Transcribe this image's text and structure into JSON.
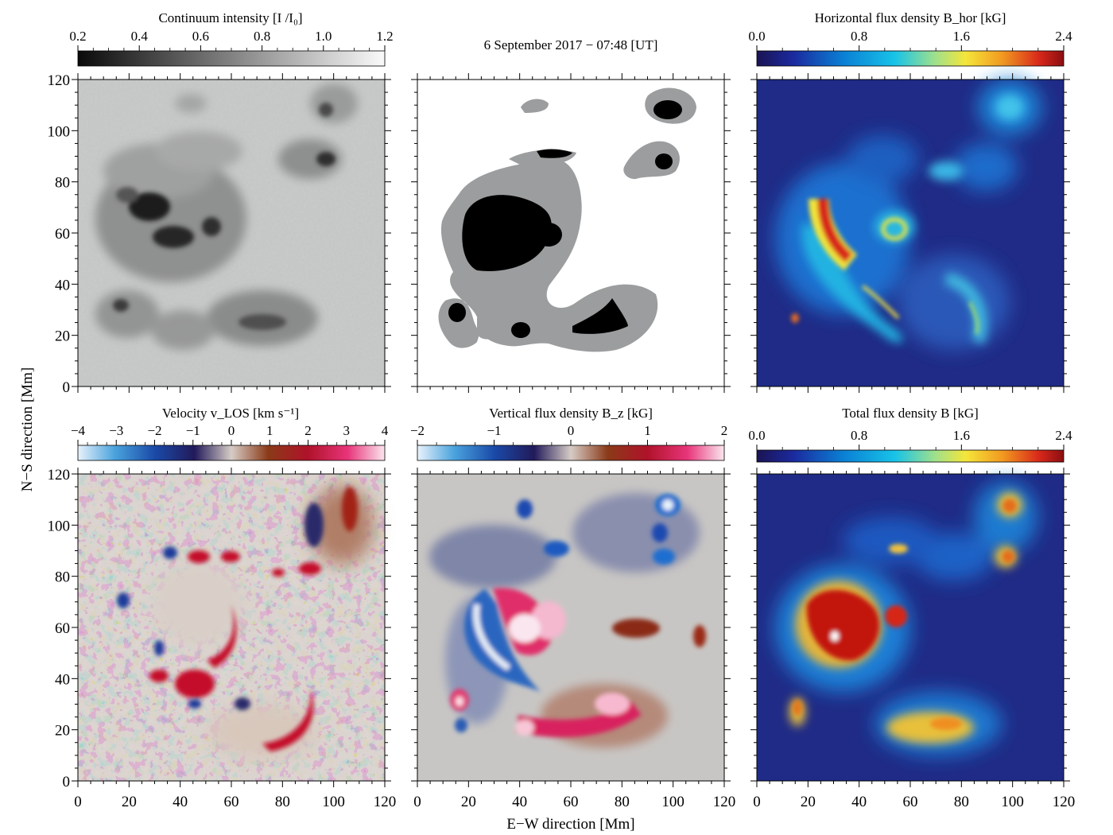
{
  "figure": {
    "date_label": "6 September 2017 − 07:48   [UT]",
    "x_label": "E−W direction   [Mm]",
    "y_label": "N−S direction   [Mm]"
  },
  "chart_data": [
    {
      "type": "heatmap",
      "id": "continuum",
      "title": "Continuum intensity [I /I₀]",
      "colorbar": {
        "colormap": "gray",
        "min": 0.2,
        "max": 1.2,
        "ticks": [
          "0.2",
          "0.4",
          "0.6",
          "0.8",
          "1.0",
          "1.2"
        ],
        "tick_values": [
          0.2,
          0.4,
          0.6,
          0.8,
          1.0,
          1.2
        ]
      },
      "xlim": [
        0,
        120
      ],
      "ylim": [
        0,
        120
      ],
      "xticks": [],
      "yticks": [
        "0",
        "20",
        "40",
        "60",
        "80",
        "100",
        "120"
      ],
      "ytick_values": [
        0,
        20,
        40,
        60,
        80,
        100,
        120
      ]
    },
    {
      "type": "heatmap",
      "id": "mask",
      "title": "",
      "colorbar": null,
      "xlim": [
        0,
        120
      ],
      "ylim": [
        0,
        120
      ],
      "xticks": [],
      "yticks": []
    },
    {
      "type": "heatmap",
      "id": "bhor",
      "title": "Horizontal flux density B_hor   [kG]",
      "colorbar": {
        "colormap": "jet",
        "min": 0.0,
        "max": 2.4,
        "ticks": [
          "0.0",
          "0.8",
          "1.6",
          "2.4"
        ],
        "tick_values": [
          0.0,
          0.8,
          1.6,
          2.4
        ]
      },
      "xlim": [
        0,
        120
      ],
      "ylim": [
        0,
        120
      ],
      "xticks": [],
      "yticks": []
    },
    {
      "type": "heatmap",
      "id": "vlos",
      "title": "Velocity  v_LOS   [km s⁻¹]",
      "colorbar": {
        "colormap": "diverging",
        "min": -4,
        "max": 4,
        "ticks": [
          "−4",
          "−3",
          "−2",
          "−1",
          "0",
          "1",
          "2",
          "3",
          "4"
        ],
        "tick_values": [
          -4,
          -3,
          -2,
          -1,
          0,
          1,
          2,
          3,
          4
        ]
      },
      "xlim": [
        0,
        120
      ],
      "ylim": [
        0,
        120
      ],
      "xticks": [
        "0",
        "20",
        "40",
        "60",
        "80",
        "100",
        "120"
      ],
      "xtick_values": [
        0,
        20,
        40,
        60,
        80,
        100,
        120
      ],
      "yticks": [
        "0",
        "20",
        "40",
        "60",
        "80",
        "100",
        "120"
      ],
      "ytick_values": [
        0,
        20,
        40,
        60,
        80,
        100,
        120
      ]
    },
    {
      "type": "heatmap",
      "id": "bz",
      "title": "Vertical flux density  B_z   [kG]",
      "colorbar": {
        "colormap": "diverging",
        "min": -2,
        "max": 2,
        "ticks": [
          "−2",
          "−1",
          "0",
          "1",
          "2"
        ],
        "tick_values": [
          -2,
          -1,
          0,
          1,
          2
        ]
      },
      "xlim": [
        0,
        120
      ],
      "ylim": [
        0,
        120
      ],
      "xticks": [
        "0",
        "20",
        "40",
        "60",
        "80",
        "100",
        "120"
      ],
      "xtick_values": [
        0,
        20,
        40,
        60,
        80,
        100,
        120
      ],
      "yticks": []
    },
    {
      "type": "heatmap",
      "id": "btot",
      "title": "Total flux density  B   [kG]",
      "colorbar": {
        "colormap": "jet",
        "min": 0.0,
        "max": 2.4,
        "ticks": [
          "0.0",
          "0.8",
          "1.6",
          "2.4"
        ],
        "tick_values": [
          0.0,
          0.8,
          1.6,
          2.4
        ]
      },
      "xlim": [
        0,
        120
      ],
      "ylim": [
        0,
        120
      ],
      "xticks": [
        "0",
        "20",
        "40",
        "60",
        "80",
        "100",
        "120"
      ],
      "xtick_values": [
        0,
        20,
        40,
        60,
        80,
        100,
        120
      ],
      "yticks": []
    }
  ]
}
